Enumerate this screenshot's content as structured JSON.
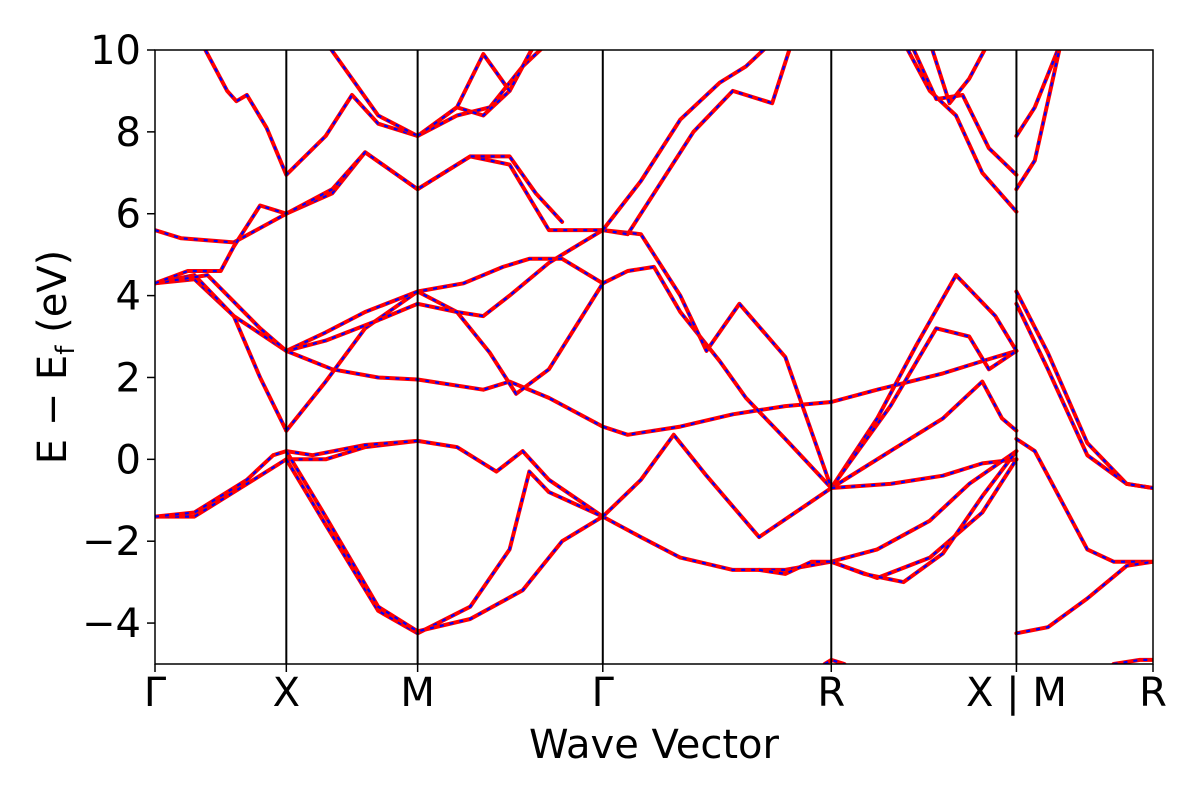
{
  "chart_data": {
    "type": "line",
    "title": "",
    "xlabel": "Wave Vector",
    "ylabel": "E − E",
    "ylabel_subscript": "f",
    "ylabel_unit": " (eV)",
    "ylim": [
      -5,
      10
    ],
    "xlim": [
      0,
      7.6
    ],
    "yticks": [
      -4,
      -2,
      0,
      2,
      4,
      6,
      8,
      10
    ],
    "ytick_labels": [
      "−4",
      "−2",
      "0",
      "2",
      "4",
      "6",
      "8",
      "10"
    ],
    "kpath": [
      {
        "label": "Γ",
        "x": 0.0
      },
      {
        "label": "X",
        "x": 1.0
      },
      {
        "label": "M",
        "x": 2.0
      },
      {
        "label": "Γ",
        "x": 3.41
      },
      {
        "label": "R",
        "x": 5.15
      },
      {
        "label": "X | M",
        "x": 6.56
      },
      {
        "label": "R",
        "x": 7.6
      }
    ],
    "grid": false,
    "legend": "none",
    "colors": {
      "solid": "#ff0000",
      "dashed": "#0000ff"
    },
    "series": [
      {
        "x": [
          0,
          0.3,
          0.6,
          1.0,
          1.35,
          1.7,
          2.0,
          2.5,
          2.7,
          3.0,
          3.41,
          3.6,
          4.0,
          4.4,
          4.8,
          5.15,
          5.5,
          6.0,
          6.3,
          6.56
        ],
        "values": [
          4.3,
          4.4,
          3.5,
          2.65,
          2.2,
          2.0,
          1.95,
          1.7,
          1.9,
          1.5,
          0.8,
          0.6,
          0.8,
          1.1,
          1.3,
          1.4,
          1.7,
          2.1,
          2.4,
          2.65
        ]
      },
      {
        "x": [
          0,
          0.3,
          0.6,
          0.8,
          1.0
        ],
        "values": [
          4.3,
          4.5,
          3.5,
          2.0,
          0.7
        ]
      },
      {
        "x": [
          1.0,
          1.3,
          1.6,
          2.0,
          2.3,
          2.5,
          2.7,
          3.0,
          3.1,
          3.41
        ],
        "values": [
          0.7,
          1.9,
          3.2,
          4.1,
          3.6,
          3.5,
          4.0,
          4.8,
          5.0,
          5.6
        ]
      },
      {
        "x": [
          1.0,
          1.3,
          1.6,
          2.0,
          2.35,
          2.65,
          2.85,
          3.1,
          3.41
        ],
        "values": [
          2.65,
          3.1,
          3.6,
          4.1,
          4.3,
          4.7,
          4.9,
          4.9,
          4.3
        ]
      },
      {
        "x": [
          0,
          0.4,
          0.8,
          1.0,
          1.3,
          1.7,
          2.0,
          2.3,
          2.55,
          2.75,
          3.0,
          3.41
        ],
        "values": [
          4.3,
          4.5,
          3.2,
          2.65,
          2.9,
          3.4,
          3.8,
          3.6,
          2.6,
          1.6,
          2.2,
          4.3
        ]
      },
      {
        "x": [
          0,
          0.2,
          0.6,
          1.0,
          1.35,
          1.6,
          2.0,
          2.4,
          2.7,
          3.0,
          3.41
        ],
        "values": [
          5.6,
          5.4,
          5.3,
          6.0,
          6.5,
          7.5,
          6.6,
          7.4,
          7.2,
          5.6,
          5.6
        ]
      },
      {
        "x": [
          0,
          0.25,
          0.5,
          0.6,
          0.8,
          1.0,
          1.35,
          1.6,
          2.0,
          2.4,
          2.7,
          2.9,
          3.1
        ],
        "values": [
          4.3,
          4.6,
          4.6,
          5.2,
          6.2,
          6.0,
          6.6,
          7.5,
          6.6,
          7.4,
          7.4,
          6.5,
          5.8
        ]
      },
      {
        "x": [
          0.35,
          0.55,
          0.62,
          0.7,
          0.85,
          1.0,
          1.3,
          1.5,
          1.7,
          2.0,
          2.3,
          2.55,
          2.8,
          3.0,
          3.2
        ],
        "values": [
          10.2,
          9.0,
          8.75,
          8.9,
          8.1,
          6.95,
          7.9,
          8.9,
          8.2,
          7.9,
          8.4,
          8.6,
          9.6,
          10.2,
          10.6
        ]
      },
      {
        "x": [
          1.3,
          1.5,
          1.7,
          2.0,
          2.3,
          2.5,
          2.7,
          2.9
        ],
        "values": [
          10.2,
          9.3,
          8.4,
          7.9,
          8.6,
          8.4,
          9.0,
          10.2
        ]
      },
      {
        "x": [
          2.0,
          2.3,
          2.5,
          2.7,
          2.9
        ],
        "values": [
          7.9,
          8.6,
          9.9,
          9.0,
          10.2
        ]
      },
      {
        "x": [
          0,
          0.3,
          0.7,
          1.0,
          1.3,
          1.6,
          2.0,
          2.3,
          2.6,
          2.8,
          3.0,
          3.41
        ],
        "values": [
          -1.4,
          -1.4,
          -0.6,
          0.0,
          0.0,
          0.3,
          0.45,
          0.3,
          -0.3,
          0.2,
          -0.5,
          -1.4
        ]
      },
      {
        "x": [
          0,
          0.3,
          0.7,
          0.9,
          1.0,
          1.2,
          1.6,
          2.0
        ],
        "values": [
          -1.4,
          -1.3,
          -0.5,
          0.1,
          0.2,
          0.1,
          0.35,
          0.45
        ]
      },
      {
        "x": [
          1.0,
          1.3,
          1.7,
          2.0,
          2.4,
          2.7,
          2.85,
          3.0,
          3.41
        ],
        "values": [
          0.0,
          -1.6,
          -3.7,
          -4.25,
          -3.6,
          -2.2,
          -0.3,
          -0.8,
          -1.4
        ]
      },
      {
        "x": [
          1.0,
          1.3,
          1.7,
          2.0,
          2.4,
          2.8,
          3.1,
          3.41
        ],
        "values": [
          0.2,
          -1.4,
          -3.6,
          -4.2,
          -3.9,
          -3.2,
          -2.0,
          -1.4
        ]
      },
      {
        "x": [
          3.41,
          3.7,
          4.0,
          4.4,
          4.8,
          5.15
        ],
        "values": [
          -1.4,
          -1.9,
          -2.4,
          -2.7,
          -2.7,
          -2.5
        ]
      },
      {
        "x": [
          3.41,
          3.7,
          3.95,
          4.2,
          4.6,
          5.15
        ],
        "values": [
          -1.4,
          -0.5,
          0.6,
          -0.4,
          -1.9,
          -0.7
        ]
      },
      {
        "x": [
          3.41,
          3.6,
          3.8,
          4.0,
          4.3,
          4.5,
          4.8,
          5.15
        ],
        "values": [
          4.3,
          4.6,
          4.7,
          3.6,
          2.4,
          1.5,
          0.5,
          -0.7
        ]
      },
      {
        "x": [
          3.41,
          3.7,
          4.0,
          4.2,
          4.45,
          4.8,
          5.15
        ],
        "values": [
          5.6,
          5.5,
          4.0,
          2.65,
          3.8,
          2.5,
          -0.7
        ]
      },
      {
        "x": [
          3.41,
          3.6,
          3.8,
          4.1,
          4.4,
          4.7,
          4.85
        ],
        "values": [
          5.6,
          5.5,
          6.5,
          8.0,
          9.0,
          8.7,
          10.2
        ]
      },
      {
        "x": [
          3.41,
          3.7,
          4.0,
          4.3,
          4.5,
          4.7
        ],
        "values": [
          5.6,
          6.8,
          8.3,
          9.2,
          9.6,
          10.2
        ]
      },
      {
        "x": [
          5.15,
          5.5,
          5.8,
          6.1,
          6.4,
          6.56
        ],
        "values": [
          -0.7,
          1.0,
          2.8,
          4.5,
          3.5,
          2.65
        ]
      },
      {
        "x": [
          5.15,
          5.6,
          5.95,
          6.2,
          6.35,
          6.56
        ],
        "values": [
          -0.7,
          1.3,
          3.2,
          3.0,
          2.2,
          2.65
        ]
      },
      {
        "x": [
          5.15,
          5.6,
          6.0,
          6.3,
          6.45,
          6.56
        ],
        "values": [
          -0.7,
          0.2,
          1.0,
          1.9,
          1.0,
          0.7
        ]
      },
      {
        "x": [
          5.15,
          5.6,
          6.0,
          6.3,
          6.56
        ],
        "values": [
          -0.7,
          -0.6,
          -0.4,
          -0.1,
          0.0
        ]
      },
      {
        "x": [
          5.15,
          5.5,
          5.9,
          6.2,
          6.56
        ],
        "values": [
          -2.5,
          -2.2,
          -1.5,
          -0.6,
          0.2
        ]
      },
      {
        "x": [
          5.15,
          5.5,
          5.9,
          6.3,
          6.56
        ],
        "values": [
          -2.5,
          -2.9,
          -2.4,
          -1.3,
          0.0
        ]
      },
      {
        "x": [
          5.15,
          5.4,
          5.7,
          6.0,
          6.3,
          6.56
        ],
        "values": [
          -2.5,
          -2.8,
          -3.0,
          -2.3,
          -0.9,
          0.2
        ]
      },
      {
        "x": [
          4.6,
          4.8,
          5.0,
          5.15
        ],
        "values": [
          -2.7,
          -2.8,
          -2.5,
          -2.5
        ]
      },
      {
        "x": [
          5.7,
          5.9,
          6.1,
          6.3,
          6.56
        ],
        "values": [
          10.2,
          9.0,
          8.4,
          7.0,
          6.05
        ]
      },
      {
        "x": [
          5.75,
          5.95,
          6.15,
          6.35,
          6.56
        ],
        "values": [
          10.2,
          8.8,
          8.9,
          7.6,
          6.95
        ]
      },
      {
        "x": [
          5.9,
          6.05,
          6.2,
          6.35
        ],
        "values": [
          10.2,
          8.7,
          9.3,
          10.2
        ]
      },
      {
        "x": [
          6.56,
          6.7,
          6.9,
          7.1,
          7.3,
          7.6
        ],
        "values": [
          0.5,
          0.2,
          -1.0,
          -2.2,
          -2.5,
          -2.5
        ]
      },
      {
        "x": [
          6.56,
          6.8,
          7.1,
          7.4,
          7.6
        ],
        "values": [
          4.1,
          2.6,
          0.4,
          -0.6,
          -0.7
        ]
      },
      {
        "x": [
          6.56,
          6.8,
          7.1,
          7.4,
          7.6
        ],
        "values": [
          3.8,
          2.2,
          0.1,
          -0.6,
          -0.7
        ]
      },
      {
        "x": [
          6.56,
          6.8,
          7.1,
          7.4,
          7.6
        ],
        "values": [
          -4.25,
          -4.1,
          -3.4,
          -2.6,
          -2.5
        ]
      },
      {
        "x": [
          6.56,
          6.7,
          6.9
        ],
        "values": [
          7.9,
          8.6,
          10.2
        ]
      },
      {
        "x": [
          6.56,
          6.7,
          6.9
        ],
        "values": [
          6.6,
          7.3,
          10.2
        ]
      },
      {
        "x": [
          5.1,
          5.15,
          5.25
        ],
        "values": [
          -5.0,
          -4.9,
          -5.0
        ]
      },
      {
        "x": [
          7.3,
          7.5,
          7.6
        ],
        "values": [
          -5.0,
          -4.9,
          -4.9
        ]
      }
    ]
  }
}
